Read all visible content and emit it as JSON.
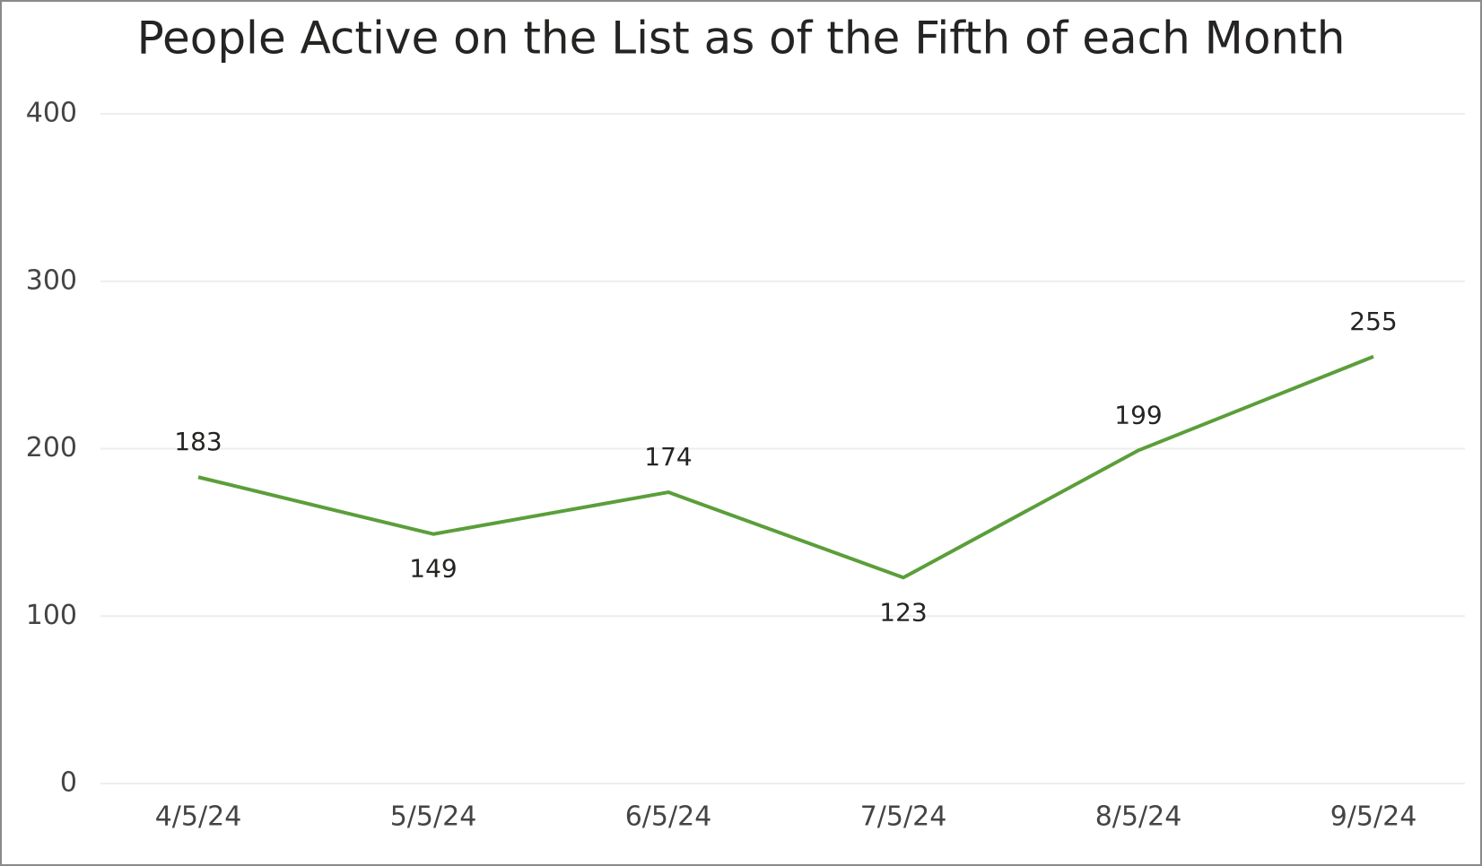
{
  "chart_data": {
    "type": "line",
    "title": "People Active on the List as of the Fifth of each Month",
    "categories": [
      "4/5/24",
      "5/5/24",
      "6/5/24",
      "7/5/24",
      "8/5/24",
      "9/5/24"
    ],
    "series": [
      {
        "name": "People Active",
        "color": "#5b9e3a",
        "values": [
          183,
          149,
          174,
          123,
          199,
          255
        ]
      }
    ],
    "ylim": [
      0,
      400
    ],
    "yticks": [
      0,
      100,
      200,
      300,
      400
    ],
    "grid": true
  }
}
